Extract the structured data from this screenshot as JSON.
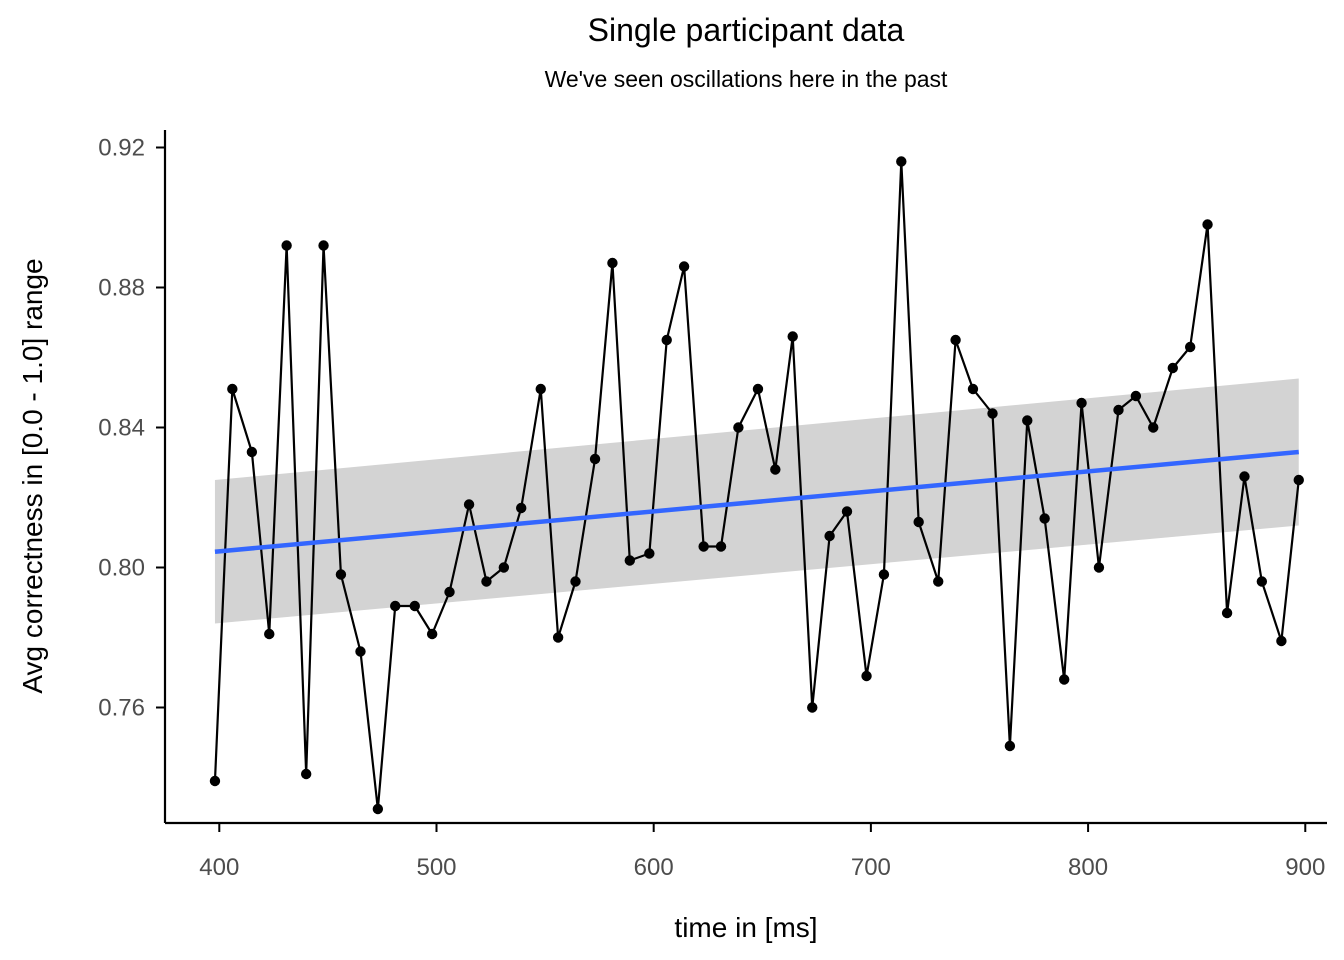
{
  "chart_data": {
    "type": "line",
    "title": "Single participant data",
    "subtitle": "We've seen oscillations here in the past",
    "xlabel": "time in [ms]",
    "ylabel": "Avg correctness in [0.0 - 1.0] range",
    "xlim": [
      375,
      910
    ],
    "ylim": [
      0.727,
      0.925
    ],
    "xticks": [
      400,
      500,
      600,
      700,
      800,
      900
    ],
    "yticks": [
      0.76,
      0.8,
      0.84,
      0.88,
      0.92
    ],
    "ytick_labels": [
      "0.76",
      "0.80",
      "0.84",
      "0.88",
      "0.92"
    ],
    "grid": false,
    "series": [
      {
        "style": "line+points",
        "color": "#000000",
        "x": [
          398,
          406,
          415,
          423,
          431,
          440,
          448,
          456,
          465,
          473,
          481,
          490,
          498,
          506,
          515,
          523,
          531,
          539,
          548,
          556,
          564,
          573,
          581,
          589,
          598,
          606,
          614,
          623,
          631,
          639,
          648,
          656,
          664,
          673,
          681,
          689,
          698,
          706,
          714,
          722,
          731,
          739,
          747,
          756,
          764,
          772,
          780,
          789,
          797,
          805,
          814,
          822,
          830,
          839,
          847,
          855,
          864,
          872,
          880,
          889,
          897
        ],
        "y": [
          0.739,
          0.851,
          0.833,
          0.781,
          0.892,
          0.741,
          0.892,
          0.798,
          0.776,
          0.731,
          0.789,
          0.789,
          0.781,
          0.793,
          0.818,
          0.796,
          0.8,
          0.817,
          0.851,
          0.78,
          0.796,
          0.831,
          0.887,
          0.802,
          0.804,
          0.865,
          0.886,
          0.806,
          0.806,
          0.84,
          0.851,
          0.828,
          0.866,
          0.76,
          0.809,
          0.816,
          0.769,
          0.798,
          0.916,
          0.813,
          0.796,
          0.865,
          0.851,
          0.844,
          0.749,
          0.842,
          0.814,
          0.768,
          0.847,
          0.8,
          0.845,
          0.849,
          0.84,
          0.857,
          0.863,
          0.898,
          0.787,
          0.826,
          0.796,
          0.779,
          0.825
        ]
      },
      {
        "style": "linear-fit",
        "color": "#3366ff",
        "x": [
          398,
          897
        ],
        "y": [
          0.8045,
          0.833
        ],
        "ci_lower": [
          0.784,
          0.812
        ],
        "ci_upper": [
          0.825,
          0.854
        ],
        "ci_color": "#d3d3d3"
      }
    ]
  }
}
